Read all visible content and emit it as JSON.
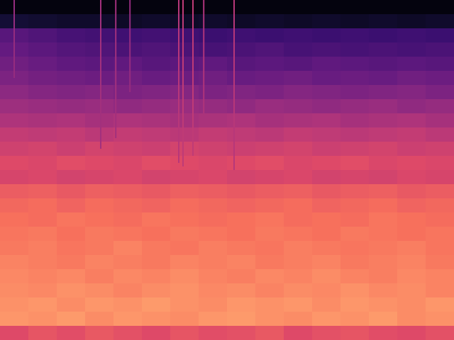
{
  "chart_data": {
    "type": "heatmap",
    "xlim": [
      0,
      16
    ],
    "ylim": [
      0,
      24
    ],
    "tick_labels": false,
    "grid": false,
    "zlim": [
      0,
      1
    ],
    "cells": [
      [
        0.6,
        0.63,
        0.61,
        0.64,
        0.62,
        0.6,
        0.63,
        0.61,
        0.62,
        0.64,
        0.6,
        0.62,
        0.63,
        0.61,
        0.6,
        0.62
      ],
      [
        0.78,
        0.77,
        0.79,
        0.76,
        0.78,
        0.77,
        0.76,
        0.78,
        0.79,
        0.77,
        0.76,
        0.78,
        0.77,
        0.79,
        0.76,
        0.77
      ],
      [
        0.77,
        0.78,
        0.76,
        0.78,
        0.77,
        0.79,
        0.77,
        0.76,
        0.78,
        0.77,
        0.78,
        0.76,
        0.78,
        0.77,
        0.76,
        0.78
      ],
      [
        0.76,
        0.75,
        0.77,
        0.76,
        0.74,
        0.76,
        0.77,
        0.75,
        0.76,
        0.74,
        0.76,
        0.75,
        0.77,
        0.75,
        0.76,
        0.74
      ],
      [
        0.75,
        0.74,
        0.75,
        0.73,
        0.75,
        0.74,
        0.76,
        0.74,
        0.73,
        0.75,
        0.74,
        0.76,
        0.74,
        0.73,
        0.75,
        0.74
      ],
      [
        0.74,
        0.73,
        0.72,
        0.74,
        0.73,
        0.72,
        0.74,
        0.73,
        0.74,
        0.72,
        0.73,
        0.74,
        0.72,
        0.73,
        0.74,
        0.72
      ],
      [
        0.72,
        0.73,
        0.71,
        0.72,
        0.74,
        0.72,
        0.71,
        0.73,
        0.72,
        0.71,
        0.73,
        0.72,
        0.71,
        0.72,
        0.73,
        0.71
      ],
      [
        0.71,
        0.72,
        0.7,
        0.72,
        0.71,
        0.7,
        0.72,
        0.71,
        0.7,
        0.72,
        0.71,
        0.7,
        0.72,
        0.71,
        0.7,
        0.71
      ],
      [
        0.7,
        0.69,
        0.71,
        0.7,
        0.69,
        0.71,
        0.7,
        0.69,
        0.7,
        0.71,
        0.69,
        0.7,
        0.69,
        0.71,
        0.7,
        0.69
      ],
      [
        0.68,
        0.69,
        0.67,
        0.69,
        0.68,
        0.67,
        0.69,
        0.68,
        0.67,
        0.68,
        0.69,
        0.67,
        0.68,
        0.69,
        0.67,
        0.68
      ],
      [
        0.65,
        0.66,
        0.64,
        0.66,
        0.65,
        0.64,
        0.66,
        0.65,
        0.64,
        0.65,
        0.66,
        0.64,
        0.65,
        0.66,
        0.64,
        0.65
      ],
      [
        0.58,
        0.59,
        0.57,
        0.58,
        0.59,
        0.57,
        0.58,
        0.59,
        0.57,
        0.58,
        0.59,
        0.57,
        0.58,
        0.57,
        0.59,
        0.58
      ],
      [
        0.6,
        0.59,
        0.61,
        0.6,
        0.59,
        0.61,
        0.6,
        0.59,
        0.6,
        0.61,
        0.59,
        0.6,
        0.61,
        0.59,
        0.6,
        0.59
      ],
      [
        0.56,
        0.57,
        0.55,
        0.57,
        0.56,
        0.55,
        0.57,
        0.56,
        0.55,
        0.56,
        0.57,
        0.55,
        0.56,
        0.57,
        0.55,
        0.56
      ],
      [
        0.53,
        0.52,
        0.53,
        0.51,
        0.53,
        0.52,
        0.51,
        0.53,
        0.52,
        0.51,
        0.53,
        0.52,
        0.51,
        0.52,
        0.53,
        0.51
      ],
      [
        0.48,
        0.47,
        0.48,
        0.46,
        0.48,
        0.47,
        0.46,
        0.47,
        0.48,
        0.46,
        0.47,
        0.48,
        0.46,
        0.47,
        0.48,
        0.46
      ],
      [
        0.44,
        0.43,
        0.42,
        0.43,
        0.41,
        0.42,
        0.43,
        0.42,
        0.41,
        0.43,
        0.42,
        0.41,
        0.42,
        0.43,
        0.41,
        0.42
      ],
      [
        0.4,
        0.38,
        0.37,
        0.38,
        0.36,
        0.37,
        0.38,
        0.36,
        0.37,
        0.36,
        0.38,
        0.37,
        0.36,
        0.37,
        0.38,
        0.36
      ],
      [
        0.36,
        0.34,
        0.33,
        0.32,
        0.33,
        0.31,
        0.32,
        0.33,
        0.31,
        0.32,
        0.33,
        0.31,
        0.32,
        0.31,
        0.33,
        0.32
      ],
      [
        0.33,
        0.31,
        0.29,
        0.28,
        0.29,
        0.27,
        0.28,
        0.29,
        0.27,
        0.28,
        0.27,
        0.29,
        0.28,
        0.27,
        0.28,
        0.27
      ],
      [
        0.3,
        0.28,
        0.26,
        0.25,
        0.24,
        0.25,
        0.24,
        0.23,
        0.24,
        0.25,
        0.23,
        0.24,
        0.23,
        0.24,
        0.23,
        0.24
      ],
      [
        0.27,
        0.25,
        0.23,
        0.22,
        0.21,
        0.22,
        0.21,
        0.2,
        0.21,
        0.2,
        0.21,
        0.2,
        0.21,
        0.2,
        0.21,
        0.2
      ],
      [
        0.1,
        0.09,
        0.08,
        0.08,
        0.07,
        0.08,
        0.07,
        0.08,
        0.07,
        0.08,
        0.07,
        0.08,
        0.07,
        0.08,
        0.07,
        0.08
      ],
      [
        0.02,
        0.02,
        0.02,
        0.02,
        0.02,
        0.02,
        0.02,
        0.02,
        0.02,
        0.02,
        0.02,
        0.02,
        0.02,
        0.02,
        0.02,
        0.02
      ]
    ],
    "lines": [
      {
        "x": 0.5,
        "y0": 18.5,
        "y1": 24,
        "value": 0.42
      },
      {
        "x": 3.55,
        "y0": 13.5,
        "y1": 24,
        "value": 0.45
      },
      {
        "x": 4.08,
        "y0": 14.25,
        "y1": 24,
        "value": 0.45
      },
      {
        "x": 4.58,
        "y0": 17.5,
        "y1": 24,
        "value": 0.42
      },
      {
        "x": 6.3,
        "y0": 12.5,
        "y1": 24,
        "value": 0.5
      },
      {
        "x": 6.45,
        "y0": 12.25,
        "y1": 24,
        "value": 0.52
      },
      {
        "x": 6.8,
        "y0": 13,
        "y1": 24,
        "value": 0.52
      },
      {
        "x": 7.18,
        "y0": 16,
        "y1": 24,
        "value": 0.48
      },
      {
        "x": 8.25,
        "y0": 12,
        "y1": 24,
        "value": 0.5
      }
    ]
  }
}
